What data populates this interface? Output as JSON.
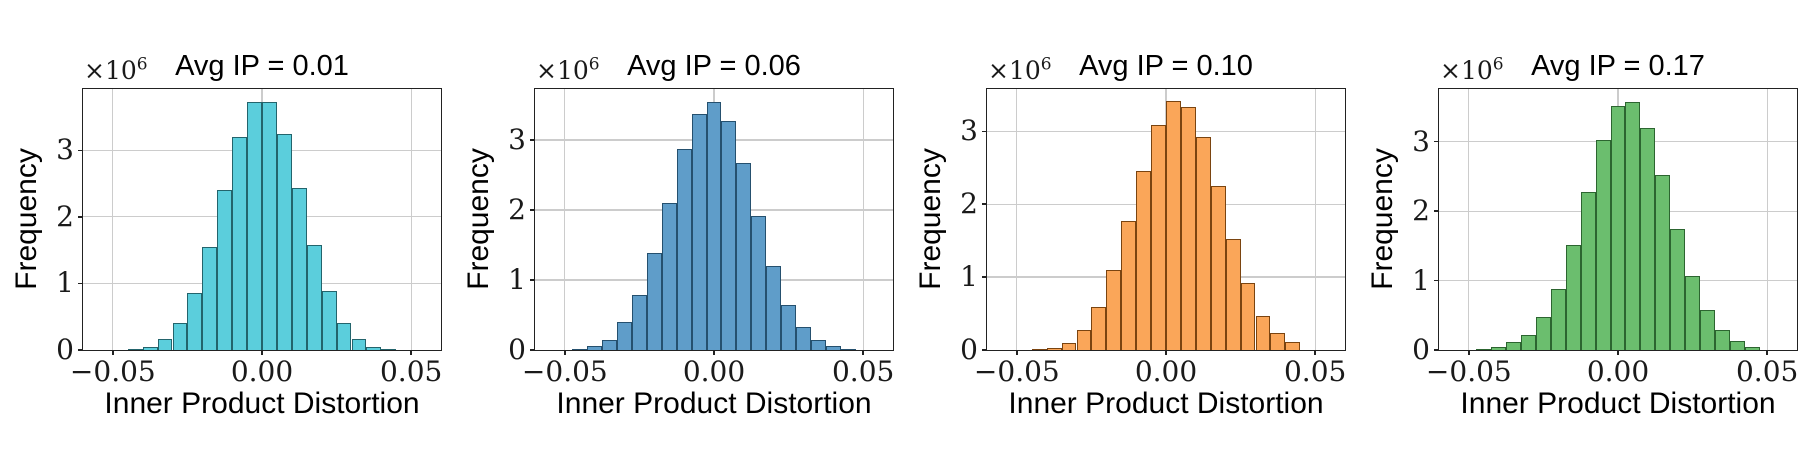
{
  "figure": {
    "background_color": "#ffffff",
    "grid_color": "#cccccc",
    "spine_color": "#222222",
    "text_color": "#000000"
  },
  "chart_data": [
    {
      "type": "bar",
      "subtype": "histogram",
      "title": "Avg IP = 0.01",
      "xlabel": "Inner Product Distortion",
      "ylabel": "Frequency",
      "offset_text": "×10",
      "offset_exp": "6",
      "bar_color": "#5BCEDC",
      "bar_edge_color": "#23646C",
      "xlim": [
        -0.06,
        0.06
      ],
      "ylim": [
        0,
        3.92
      ],
      "y_unit_multiplier": 1000000,
      "grid": true,
      "x_ticks": [
        {
          "v": -0.05,
          "label": "−0.05"
        },
        {
          "v": 0.0,
          "label": "0.00"
        },
        {
          "v": 0.05,
          "label": "0.05"
        }
      ],
      "y_ticks": [
        {
          "v": 0,
          "label": "0"
        },
        {
          "v": 1,
          "label": "1"
        },
        {
          "v": 2,
          "label": "2"
        },
        {
          "v": 3,
          "label": "3"
        }
      ],
      "bins": {
        "start": -0.045,
        "width": 0.005
      },
      "frequencies_millions": [
        0.01,
        0.05,
        0.17,
        0.4,
        0.86,
        1.55,
        2.4,
        3.2,
        3.73,
        3.73,
        3.25,
        2.43,
        1.58,
        0.88,
        0.41,
        0.17,
        0.05,
        0.01
      ]
    },
    {
      "type": "bar",
      "subtype": "histogram",
      "title": "Avg IP = 0.06",
      "xlabel": "Inner Product Distortion",
      "ylabel": "Frequency",
      "offset_text": "×10",
      "offset_exp": "6",
      "bar_color": "#5F9DC9",
      "bar_edge_color": "#25506E",
      "xlim": [
        -0.06,
        0.06
      ],
      "ylim": [
        0,
        3.73
      ],
      "y_unit_multiplier": 1000000,
      "grid": true,
      "x_ticks": [
        {
          "v": -0.05,
          "label": "−0.05"
        },
        {
          "v": 0.0,
          "label": "0.00"
        },
        {
          "v": 0.05,
          "label": "0.05"
        }
      ],
      "y_ticks": [
        {
          "v": 0,
          "label": "0"
        },
        {
          "v": 1,
          "label": "1"
        },
        {
          "v": 2,
          "label": "2"
        },
        {
          "v": 3,
          "label": "3"
        }
      ],
      "bins": {
        "start": -0.0475,
        "width": 0.005
      },
      "frequencies_millions": [
        0.02,
        0.06,
        0.15,
        0.4,
        0.79,
        1.38,
        2.1,
        2.87,
        3.38,
        3.55,
        3.27,
        2.67,
        1.92,
        1.2,
        0.65,
        0.33,
        0.15,
        0.06,
        0.02
      ]
    },
    {
      "type": "bar",
      "subtype": "histogram",
      "title": "Avg IP = 0.10",
      "xlabel": "Inner Product Distortion",
      "ylabel": "Frequency",
      "offset_text": "×10",
      "offset_exp": "6",
      "bar_color": "#FAA659",
      "bar_edge_color": "#7A4410",
      "xlim": [
        -0.06,
        0.06
      ],
      "ylim": [
        0,
        3.58
      ],
      "y_unit_multiplier": 1000000,
      "grid": true,
      "x_ticks": [
        {
          "v": -0.05,
          "label": "−0.05"
        },
        {
          "v": 0.0,
          "label": "0.00"
        },
        {
          "v": 0.05,
          "label": "0.05"
        }
      ],
      "y_ticks": [
        {
          "v": 0,
          "label": "0"
        },
        {
          "v": 1,
          "label": "1"
        },
        {
          "v": 2,
          "label": "2"
        },
        {
          "v": 3,
          "label": "3"
        }
      ],
      "bins": {
        "start": -0.045,
        "width": 0.005
      },
      "frequencies_millions": [
        0.01,
        0.03,
        0.1,
        0.28,
        0.59,
        1.1,
        1.77,
        2.45,
        3.08,
        3.41,
        3.34,
        2.92,
        2.25,
        1.52,
        0.92,
        0.46,
        0.24,
        0.11
      ]
    },
    {
      "type": "bar",
      "subtype": "histogram",
      "title": "Avg IP = 0.17",
      "xlabel": "Inner Product Distortion",
      "ylabel": "Frequency",
      "offset_text": "×10",
      "offset_exp": "6",
      "bar_color": "#6BBE6E",
      "bar_edge_color": "#2C6530",
      "xlim": [
        -0.06,
        0.06
      ],
      "ylim": [
        0,
        3.76
      ],
      "y_unit_multiplier": 1000000,
      "grid": true,
      "x_ticks": [
        {
          "v": -0.05,
          "label": "−0.05"
        },
        {
          "v": 0.0,
          "label": "0.00"
        },
        {
          "v": 0.05,
          "label": "0.05"
        }
      ],
      "y_ticks": [
        {
          "v": 0,
          "label": "0"
        },
        {
          "v": 1,
          "label": "1"
        },
        {
          "v": 2,
          "label": "2"
        },
        {
          "v": 3,
          "label": "3"
        }
      ],
      "bins": {
        "start": -0.0475,
        "width": 0.005
      },
      "frequencies_millions": [
        0.01,
        0.05,
        0.12,
        0.22,
        0.47,
        0.88,
        1.51,
        2.27,
        3.03,
        3.52,
        3.58,
        3.2,
        2.52,
        1.75,
        1.07,
        0.58,
        0.29,
        0.13,
        0.05
      ]
    }
  ]
}
